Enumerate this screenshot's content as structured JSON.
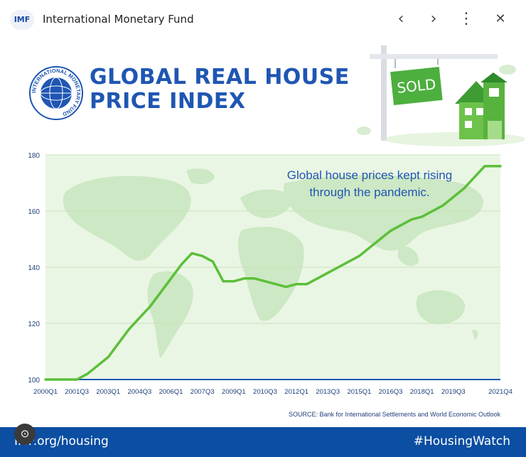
{
  "browser": {
    "badge": "IMF",
    "site_name": "International Monetary Fund",
    "nav_back": "‹",
    "nav_forward": "›",
    "menu": "⋮",
    "close": "✕"
  },
  "header": {
    "title_line1": "GLOBAL REAL HOUSE",
    "title_line2": "PRICE INDEX",
    "sign_text": "SOLD",
    "seal_text": "INTERNATIONAL MONETARY FUND"
  },
  "footer": {
    "url": "IMF.org/housing",
    "hashtag": "#HousingWatch"
  },
  "source": "SOURCE: Bank for International Settlements and World Economic Outlook",
  "colors": {
    "brand_blue": "#1f56b3",
    "footer_blue": "#0b4ea2",
    "line_green": "#5cbf3a",
    "plot_bg": "#eaf6e4",
    "map_green": "#c9e6c0"
  },
  "chart_data": {
    "type": "line",
    "title": "GLOBAL REAL HOUSE PRICE INDEX",
    "xlabel": "",
    "ylabel": "",
    "ylim": [
      100,
      180
    ],
    "yticks": [
      100,
      120,
      140,
      160,
      180
    ],
    "xticks": [
      "2000Q1",
      "2001Q3",
      "2003Q1",
      "2004Q3",
      "2006Q1",
      "2007Q3",
      "2009Q1",
      "2010Q3",
      "2012Q1",
      "2013Q3",
      "2015Q1",
      "2016Q3",
      "2018Q1",
      "2019Q3",
      "2021Q4"
    ],
    "annotation": [
      "Global house prices kept rising",
      "through the pandemic."
    ],
    "grid": true,
    "series": [
      {
        "name": "",
        "x": [
          "2000Q1",
          "2001Q1",
          "2001Q3",
          "2002Q1",
          "2002Q3",
          "2003Q1",
          "2003Q3",
          "2004Q1",
          "2004Q3",
          "2005Q1",
          "2005Q3",
          "2006Q1",
          "2006Q3",
          "2007Q1",
          "2007Q3",
          "2008Q1",
          "2008Q3",
          "2009Q1",
          "2009Q3",
          "2010Q1",
          "2010Q3",
          "2011Q1",
          "2011Q3",
          "2012Q1",
          "2012Q3",
          "2013Q1",
          "2013Q3",
          "2014Q1",
          "2014Q3",
          "2015Q1",
          "2015Q3",
          "2016Q1",
          "2016Q3",
          "2017Q1",
          "2017Q3",
          "2018Q1",
          "2018Q3",
          "2019Q1",
          "2019Q3",
          "2020Q1",
          "2020Q3",
          "2021Q1",
          "2021Q4"
        ],
        "values": [
          100,
          100,
          100,
          102,
          105,
          108,
          113,
          118,
          122,
          126,
          131,
          136,
          141,
          145,
          144,
          142,
          135,
          135,
          136,
          136,
          135,
          134,
          133,
          134,
          134,
          136,
          138,
          140,
          142,
          144,
          147,
          150,
          153,
          155,
          157,
          158,
          160,
          162,
          165,
          168,
          172,
          176,
          176
        ]
      }
    ]
  }
}
